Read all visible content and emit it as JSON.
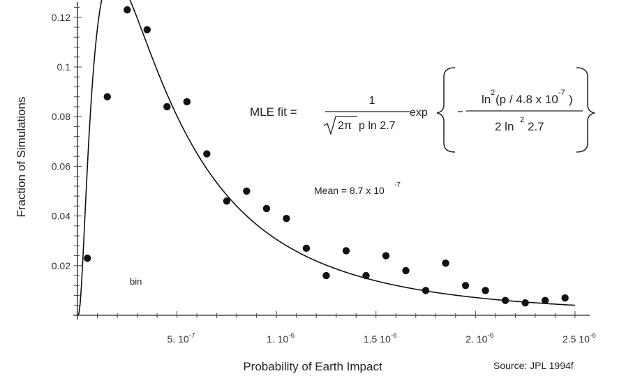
{
  "chart_data": {
    "type": "scatter",
    "xlabel": "Probability of Earth Impact",
    "ylabel": "Fraction of Simulations",
    "xlim": [
      0,
      2.56e-06
    ],
    "ylim": [
      0,
      0.125
    ],
    "x_ticks": [
      {
        "value": 5e-07,
        "mant": "5.",
        "exp": "-7"
      },
      {
        "value": 1e-06,
        "mant": "1.",
        "exp": "-6"
      },
      {
        "value": 1.5e-06,
        "mant": "1.5",
        "exp": "-6"
      },
      {
        "value": 2e-06,
        "mant": "2.",
        "exp": "-6"
      },
      {
        "value": 2.5e-06,
        "mant": "2.5",
        "exp": "-6"
      }
    ],
    "tick_base": "10",
    "y_ticks": [
      {
        "value": 0.02,
        "label": "0.02"
      },
      {
        "value": 0.04,
        "label": "0.04"
      },
      {
        "value": 0.06,
        "label": "0.06"
      },
      {
        "value": 0.08,
        "label": "0.08"
      },
      {
        "value": 0.1,
        "label": "0.1"
      },
      {
        "value": 0.12,
        "label": "0.12"
      }
    ],
    "points": [
      {
        "x": 5e-08,
        "y": 0.023
      },
      {
        "x": 1.5e-07,
        "y": 0.088
      },
      {
        "x": 2.5e-07,
        "y": 0.123
      },
      {
        "x": 3.5e-07,
        "y": 0.115
      },
      {
        "x": 4.5e-07,
        "y": 0.084
      },
      {
        "x": 5.5e-07,
        "y": 0.086
      },
      {
        "x": 6.5e-07,
        "y": 0.065
      },
      {
        "x": 7.5e-07,
        "y": 0.046
      },
      {
        "x": 8.5e-07,
        "y": 0.05
      },
      {
        "x": 9.5e-07,
        "y": 0.043
      },
      {
        "x": 1.05e-06,
        "y": 0.039
      },
      {
        "x": 1.15e-06,
        "y": 0.027
      },
      {
        "x": 1.25e-06,
        "y": 0.016
      },
      {
        "x": 1.35e-06,
        "y": 0.026
      },
      {
        "x": 1.45e-06,
        "y": 0.016
      },
      {
        "x": 1.55e-06,
        "y": 0.024
      },
      {
        "x": 1.65e-06,
        "y": 0.018
      },
      {
        "x": 1.75e-06,
        "y": 0.01
      },
      {
        "x": 1.85e-06,
        "y": 0.021
      },
      {
        "x": 1.95e-06,
        "y": 0.012
      },
      {
        "x": 2.05e-06,
        "y": 0.01
      },
      {
        "x": 2.15e-06,
        "y": 0.006
      },
      {
        "x": 2.25e-06,
        "y": 0.005
      },
      {
        "x": 2.35e-06,
        "y": 0.006
      },
      {
        "x": 2.45e-06,
        "y": 0.007
      }
    ],
    "fit": {
      "kind": "lognormal",
      "median": 4.8e-07,
      "sigma_factor": 2.7,
      "bin_width": 1e-07,
      "x_range": [
        1e-09,
        2.5e-06
      ]
    },
    "annotations": {
      "fit_label": "MLE fit =",
      "fit_numerator": "1",
      "fit_sqrt_arg": "2π",
      "fit_denominator_rest": "p ln 2.7",
      "fit_exp": "exp",
      "fit_num_ln": "ln",
      "fit_num_sq": "2",
      "fit_num_arg": "(p / 4.8 x 10",
      "fit_num_exp": "-7",
      "fit_num_close": ")",
      "fit_den": "2 ln",
      "fit_den_sq": "2",
      "fit_den_rest": "2.7",
      "mean_label": "Mean = 8.7 x 10",
      "mean_exp": "-7",
      "bin_label": "bin",
      "source": "Source:  JPL 1994f"
    }
  }
}
